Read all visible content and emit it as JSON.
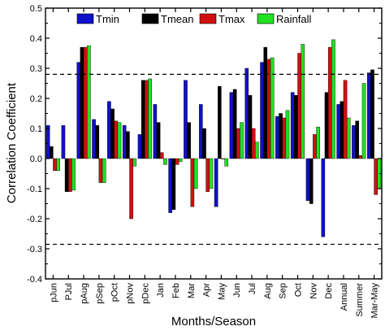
{
  "chart_data": {
    "type": "bar",
    "xlabel": "Months/Season",
    "ylabel": "Correlation Coefficient",
    "ylim": [
      -0.4,
      0.5
    ],
    "yticks": [
      -0.4,
      -0.3,
      -0.2,
      -0.1,
      0.0,
      0.1,
      0.2,
      0.3,
      0.4,
      0.5
    ],
    "ytick_labels": [
      "-0.4",
      "-0.3",
      "-0.2",
      "-0.1",
      "0.0",
      "0.1",
      "0.2",
      "0.3",
      "0.4",
      "0.5"
    ],
    "categories": [
      "pJun",
      "PJul",
      "pAug",
      "pSep",
      "pOct",
      "pNov",
      "pDec",
      "Jan",
      "Feb",
      "Mar",
      "Apr",
      "May",
      "Jun",
      "Jul",
      "Aug",
      "Sep",
      "Oct",
      "Nov",
      "Dec",
      "Annual",
      "Summer",
      "Mar-May"
    ],
    "series": [
      {
        "name": "Tmin",
        "color": "#1010c8",
        "values": [
          0.11,
          0.11,
          0.32,
          0.13,
          0.19,
          0.11,
          0.08,
          0.18,
          -0.18,
          0.26,
          0.18,
          -0.16,
          0.22,
          0.3,
          0.32,
          0.14,
          0.22,
          -0.14,
          -0.26,
          0.18,
          0.11,
          0.285
        ]
      },
      {
        "name": "Tmean",
        "color": "#000000",
        "values": [
          0.04,
          -0.11,
          0.37,
          0.11,
          0.165,
          0.09,
          0.26,
          0.12,
          -0.17,
          0.12,
          0.1,
          0.24,
          0.23,
          0.21,
          0.37,
          0.15,
          0.21,
          -0.15,
          0.22,
          0.19,
          0.125,
          0.295
        ]
      },
      {
        "name": "Tmax",
        "color": "#d01010",
        "values": [
          -0.04,
          -0.11,
          0.37,
          -0.08,
          0.125,
          -0.2,
          0.26,
          0.02,
          -0.02,
          -0.16,
          -0.11,
          0.0,
          0.1,
          0.1,
          0.33,
          0.135,
          0.35,
          0.08,
          0.37,
          0.26,
          0.01,
          -0.12
        ]
      },
      {
        "name": "Rainfall",
        "color": "#22e022",
        "values": [
          -0.04,
          -0.105,
          0.375,
          -0.08,
          0.12,
          -0.025,
          0.265,
          -0.02,
          -0.01,
          -0.1,
          -0.1,
          -0.025,
          0.12,
          0.055,
          0.335,
          0.16,
          0.38,
          0.105,
          0.395,
          0.135,
          0.25,
          -0.1
        ]
      }
    ],
    "reference_lines": [
      0.28,
      -0.285
    ],
    "legend_position": "top",
    "grid": false
  }
}
